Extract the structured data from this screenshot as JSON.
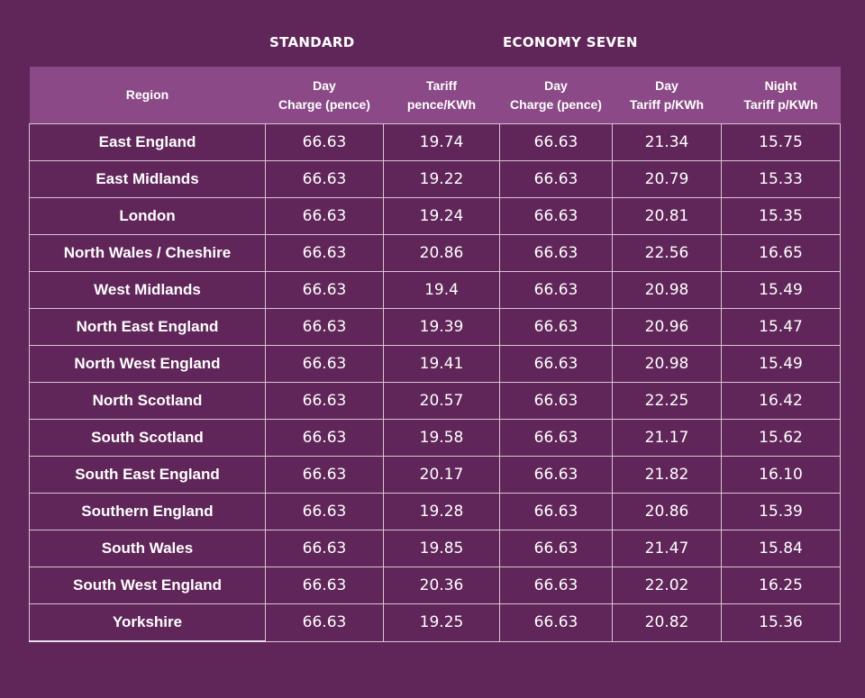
{
  "groups": {
    "standard": "STANDARD",
    "economy": "ECONOMY SEVEN"
  },
  "headers": {
    "region": "Region",
    "std_day": [
      "Day",
      "Charge (pence)"
    ],
    "std_tariff": [
      "Tariff",
      "pence/KWh"
    ],
    "e7_day": [
      "Day",
      "Charge (pence)"
    ],
    "e7_day_tariff": [
      "Day",
      "Tariff p/KWh"
    ],
    "e7_night_tariff": [
      "Night",
      "Tariff p/KWh"
    ]
  },
  "rows": [
    [
      "East England",
      "66.63",
      "19.74",
      "66.63",
      "21.34",
      "15.75"
    ],
    [
      "East Midlands",
      "66.63",
      "19.22",
      "66.63",
      "20.79",
      "15.33"
    ],
    [
      "London",
      "66.63",
      "19.24",
      "66.63",
      "20.81",
      "15.35"
    ],
    [
      "North Wales / Cheshire",
      "66.63",
      "20.86",
      "66.63",
      "22.56",
      "16.65"
    ],
    [
      "West Midlands",
      "66.63",
      "19.4",
      "66.63",
      "20.98",
      "15.49"
    ],
    [
      "North East England",
      "66.63",
      "19.39",
      "66.63",
      "20.96",
      "15.47"
    ],
    [
      "North West England",
      "66.63",
      "19.41",
      "66.63",
      "20.98",
      "15.49"
    ],
    [
      "North Scotland",
      "66.63",
      "20.57",
      "66.63",
      "22.25",
      "16.42"
    ],
    [
      "South Scotland",
      "66.63",
      "19.58",
      "66.63",
      "21.17",
      "15.62"
    ],
    [
      "South East England",
      "66.63",
      "20.17",
      "66.63",
      "21.82",
      "16.10"
    ],
    [
      "Southern England",
      "66.63",
      "19.28",
      "66.63",
      "20.86",
      "15.39"
    ],
    [
      "South Wales",
      "66.63",
      "19.85",
      "66.63",
      "21.47",
      "15.84"
    ],
    [
      "South West England",
      "66.63",
      "20.36",
      "66.63",
      "22.02",
      "16.25"
    ],
    [
      "Yorkshire",
      "66.63",
      "19.25",
      "66.63",
      "20.82",
      "15.36"
    ]
  ],
  "colors": {
    "background": "#602659",
    "header": "#8b4a87",
    "text": "#ffffff"
  }
}
